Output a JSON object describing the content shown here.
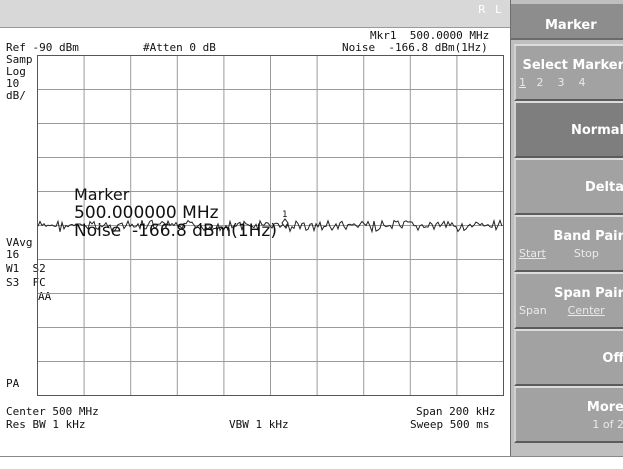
{
  "status_bar": {
    "rl": "R L"
  },
  "header": {
    "ref": "Ref -90 dBm",
    "atten": "#Atten 0 dB",
    "mkr": "Mkr1  500.0000 MHz",
    "noise": "Noise  -166.8 dBm(1Hz)"
  },
  "left_annotations": {
    "samp": "Samp",
    "log": "Log",
    "scale_value": "10",
    "scale_unit": "dB/",
    "vavg": "VAvg",
    "vavg_count": "16",
    "w1s2": "W1  S2",
    "s3fc": "S3  FC",
    "aa": "AA",
    "pa": "PA"
  },
  "marker_readout": {
    "title": "Marker",
    "frequency": "500.000000 MHz",
    "noise": "Noise  -166.8 dBm(1Hz)",
    "marker_number": "1"
  },
  "footer": {
    "center": "Center 500 MHz",
    "res_bw": "Res BW 1 kHz",
    "vbw": "VBW 1 kHz",
    "span": "Span 200 kHz",
    "sweep": "Sweep 500 ms"
  },
  "menu": {
    "title": "Marker",
    "select_marker": {
      "label": "Select Marker",
      "options": [
        "1",
        "2",
        "3",
        "4"
      ]
    },
    "normal": "Normal",
    "delta": "Delta",
    "band_pair": {
      "label": "Band Pair",
      "sub_left": "Start",
      "sub_right": "Stop"
    },
    "span_pair": {
      "label": "Span Pair",
      "sub_left": "Span",
      "sub_right": "Center"
    },
    "off": "Off",
    "more": {
      "label": "More",
      "sub": "1 of 2"
    }
  },
  "colors": {
    "menu_bg": "#a2a2a2",
    "menu_active": "#7e7e7e",
    "menu_title": "#8d8d8d",
    "trace": "#222222",
    "grid": "#9b9b9b"
  }
}
